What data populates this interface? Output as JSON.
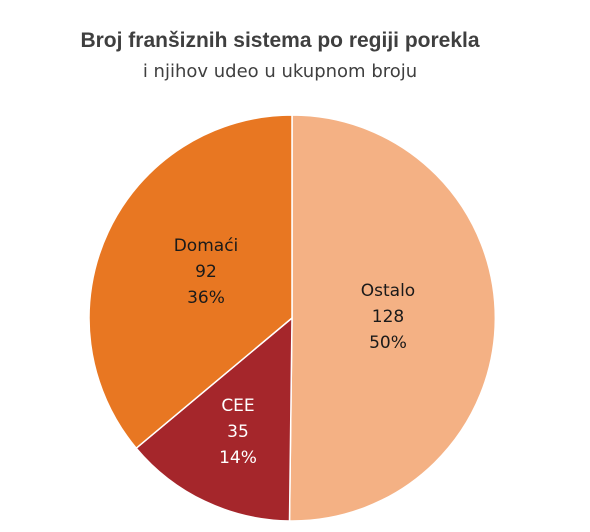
{
  "chart_data": {
    "type": "pie",
    "title": "Broj franšiznih sistema po regiji porekla",
    "subtitle": "i njihov udeo u ukupnom broju",
    "slices": [
      {
        "name": "Ostalo",
        "value": 128,
        "percent": "50%",
        "color": "#f4b184"
      },
      {
        "name": "CEE",
        "value": 35,
        "percent": "14%",
        "color": "#a5262b"
      },
      {
        "name": "Domaći",
        "value": 92,
        "percent": "36%",
        "color": "#e87722"
      }
    ],
    "start_angle_deg": 0,
    "direction": "clockwise",
    "legend": "none"
  }
}
